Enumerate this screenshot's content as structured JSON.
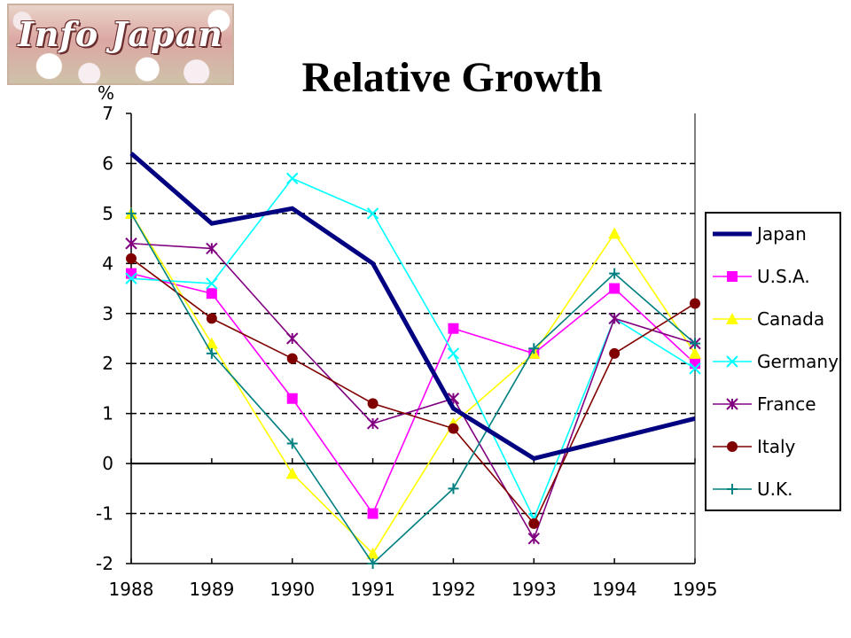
{
  "logo": {
    "text": "Info Japan"
  },
  "title": "Relative Growth",
  "colors": {
    "Japan": "#000080",
    "U.S.A.": "#ff00ff",
    "Canada": "#ffff00",
    "Germany": "#00ffff",
    "France": "#800080",
    "Italy": "#800000",
    "U.K.": "#008080"
  },
  "chart_data": {
    "type": "line",
    "title": "Relative Growth",
    "xlabel": "",
    "ylabel": "%",
    "x": [
      "1988",
      "1989",
      "1990",
      "1991",
      "1992",
      "1993",
      "1994",
      "1995"
    ],
    "ylim": [
      -2,
      7
    ],
    "yticks": [
      "7",
      "6",
      "5",
      "4",
      "3",
      "2",
      "1",
      "0",
      "-1",
      "-2"
    ],
    "grid": "horizontal dashed",
    "legend": "right",
    "series": [
      {
        "name": "Japan",
        "marker": "none",
        "values": [
          6.2,
          4.8,
          5.1,
          4.0,
          1.1,
          0.1,
          0.5,
          0.9
        ]
      },
      {
        "name": "U.S.A.",
        "marker": "square",
        "values": [
          3.8,
          3.4,
          1.3,
          -1.0,
          2.7,
          2.2,
          3.5,
          2.0
        ]
      },
      {
        "name": "Canada",
        "marker": "triangle",
        "values": [
          5.0,
          2.4,
          -0.2,
          -1.8,
          0.8,
          2.2,
          4.6,
          2.2
        ]
      },
      {
        "name": "Germany",
        "marker": "x",
        "values": [
          3.7,
          3.6,
          5.7,
          5.0,
          2.2,
          -1.1,
          2.9,
          1.9
        ]
      },
      {
        "name": "France",
        "marker": "asterisk",
        "values": [
          4.4,
          4.3,
          2.5,
          0.8,
          1.3,
          -1.5,
          2.9,
          2.4
        ]
      },
      {
        "name": "Italy",
        "marker": "circle",
        "values": [
          4.1,
          2.9,
          2.1,
          1.2,
          0.7,
          -1.2,
          2.2,
          3.2
        ]
      },
      {
        "name": "U.K.",
        "marker": "plus",
        "values": [
          5.0,
          2.2,
          0.4,
          -2.0,
          -0.5,
          2.3,
          3.8,
          2.4
        ]
      }
    ]
  }
}
